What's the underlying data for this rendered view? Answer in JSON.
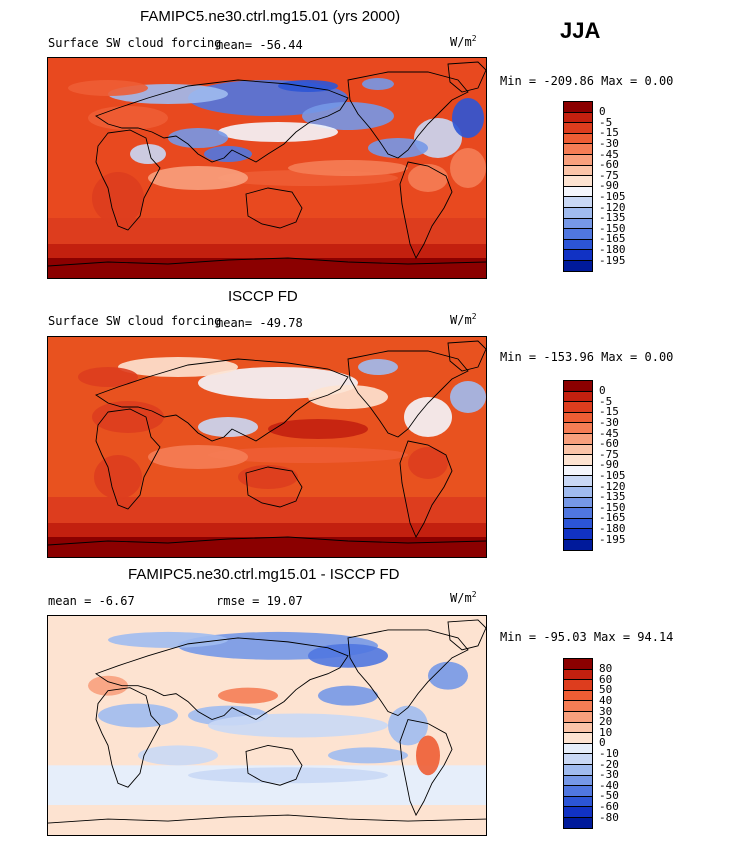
{
  "season": "JJA",
  "panels": [
    {
      "title": "FAMIPC5.ne30.ctrl.mg15.01 (yrs 2000)",
      "variable": "Surface SW cloud forcing",
      "mean_text": "mean=  -56.44",
      "units_main": "W/m",
      "units_exp": "2",
      "minmax_text": "Min = -209.86 Max =    0.00",
      "colorbar": {
        "labels": [
          "0",
          "-5",
          "-15",
          "-30",
          "-45",
          "-60",
          "-75",
          "-90",
          "-105",
          "-120",
          "-135",
          "-150",
          "-165",
          "-180",
          "-195"
        ],
        "colors": [
          "#8b0000",
          "#c3200f",
          "#dd3d1e",
          "#ee5d34",
          "#f57d55",
          "#f8a07d",
          "#fbc4a8",
          "#fde3d1",
          "#f4f6fc",
          "#c9d8f5",
          "#a0bbef",
          "#7698e7",
          "#5077e0",
          "#2c55d6",
          "#1132c4",
          "#001a9b"
        ]
      }
    },
    {
      "title": "ISCCP FD",
      "variable": "Surface SW cloud forcing",
      "mean_text": "mean=  -49.78",
      "units_main": "W/m",
      "units_exp": "2",
      "minmax_text": "Min = -153.96 Max =    0.00",
      "colorbar": {
        "labels": [
          "0",
          "-5",
          "-15",
          "-30",
          "-45",
          "-60",
          "-75",
          "-90",
          "-105",
          "-120",
          "-135",
          "-150",
          "-165",
          "-180",
          "-195"
        ],
        "colors": [
          "#8b0000",
          "#c3200f",
          "#dd3d1e",
          "#ee5d34",
          "#f57d55",
          "#f8a07d",
          "#fbc4a8",
          "#fde3d1",
          "#f4f6fc",
          "#c9d8f5",
          "#a0bbef",
          "#7698e7",
          "#5077e0",
          "#2c55d6",
          "#1132c4",
          "#001a9b"
        ]
      }
    },
    {
      "title": "FAMIPC5.ne30.ctrl.mg15.01 - ISCCP FD",
      "mean_text": "mean =   -6.67",
      "rmse_text": "rmse =  19.07",
      "units_main": "W/m",
      "units_exp": "2",
      "minmax_text": "Min = -95.03 Max =  94.14",
      "colorbar": {
        "labels": [
          "80",
          "60",
          "50",
          "40",
          "30",
          "20",
          "10",
          "0",
          "-10",
          "-20",
          "-30",
          "-40",
          "-50",
          "-60",
          "-80"
        ],
        "colors": [
          "#8b0000",
          "#c3200f",
          "#dd3d1e",
          "#ee5d34",
          "#f57d55",
          "#f8a07d",
          "#fbc4a8",
          "#fde3d1",
          "#e6eefa",
          "#c9d8f5",
          "#a0bbef",
          "#7698e7",
          "#5077e0",
          "#2c55d6",
          "#1132c4",
          "#001a9b"
        ]
      }
    }
  ],
  "chart_data": [
    {
      "type": "heatmap",
      "title": "FAMIPC5.ne30.ctrl.mg15.01 (yrs 2000)",
      "variable": "Surface SW cloud forcing",
      "units": "W/m2",
      "mean": -56.44,
      "min": -209.86,
      "max": 0.0,
      "levels": [
        0,
        -5,
        -15,
        -30,
        -45,
        -60,
        -75,
        -90,
        -105,
        -120,
        -135,
        -150,
        -165,
        -180,
        -195
      ]
    },
    {
      "type": "heatmap",
      "title": "ISCCP FD",
      "variable": "Surface SW cloud forcing",
      "units": "W/m2",
      "mean": -49.78,
      "min": -153.96,
      "max": 0.0,
      "levels": [
        0,
        -5,
        -15,
        -30,
        -45,
        -60,
        -75,
        -90,
        -105,
        -120,
        -135,
        -150,
        -165,
        -180,
        -195
      ]
    },
    {
      "type": "heatmap",
      "title": "FAMIPC5.ne30.ctrl.mg15.01 - ISCCP FD",
      "units": "W/m2",
      "mean": -6.67,
      "rmse": 19.07,
      "min": -95.03,
      "max": 94.14,
      "levels": [
        80,
        60,
        50,
        40,
        30,
        20,
        10,
        0,
        -10,
        -20,
        -30,
        -40,
        -50,
        -60,
        -80
      ]
    }
  ]
}
